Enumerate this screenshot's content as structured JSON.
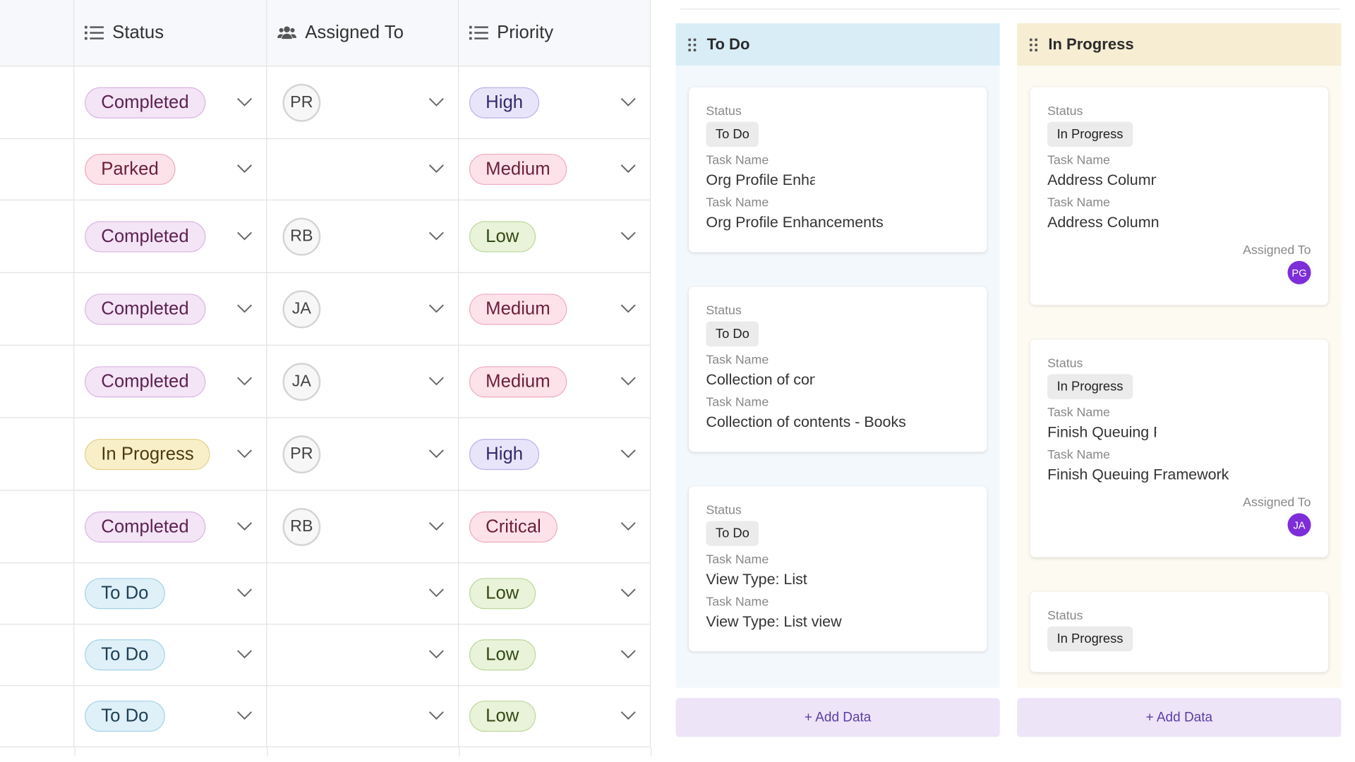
{
  "table": {
    "headers": [
      "Status",
      "Assigned To",
      "Priority"
    ],
    "rows": [
      {
        "status": "Completed",
        "assignee": "PR",
        "priority": "High"
      },
      {
        "status": "Parked",
        "assignee": null,
        "priority": "Medium"
      },
      {
        "status": "Completed",
        "assignee": "RB",
        "priority": "Low"
      },
      {
        "status": "Completed",
        "assignee": "JA",
        "priority": "Medium"
      },
      {
        "status": "Completed",
        "assignee": "JA",
        "priority": "Medium"
      },
      {
        "status": "In Progress",
        "assignee": "PR",
        "priority": "High"
      },
      {
        "status": "Completed",
        "assignee": "RB",
        "priority": "Critical"
      },
      {
        "status": "To Do",
        "assignee": null,
        "priority": "Low"
      },
      {
        "status": "To Do",
        "assignee": null,
        "priority": "Low"
      },
      {
        "status": "To Do",
        "assignee": null,
        "priority": "Low"
      }
    ],
    "pill_colors": {
      "Completed": [
        "#f3e4f6",
        "#d9b6e2",
        "#5c2350"
      ],
      "Parked": [
        "#fde2ea",
        "#f0a9c1",
        "#6b1f3a"
      ],
      "In Progress": [
        "#f8efc9",
        "#e3d28c",
        "#4a3d10"
      ],
      "To Do": [
        "#dff0f8",
        "#a5d2e7",
        "#1d3f55"
      ],
      "High": [
        "#e8e5fa",
        "#b9b3ea",
        "#332a6b"
      ],
      "Medium": [
        "#fde2ea",
        "#f0a9c1",
        "#6b1f3a"
      ],
      "Low": [
        "#e9f3d9",
        "#bdd79b",
        "#324a15"
      ],
      "Critical": [
        "#fde2ea",
        "#f0a9c1",
        "#6b1f3a"
      ]
    }
  },
  "kanban": {
    "add_label": "+ Add Data",
    "columns": [
      {
        "title": "To Do",
        "header_color": "#d9edf7",
        "body_color": "#f3f8fc",
        "cards": [
          {
            "fields": [
              {
                "label": "Status",
                "value": "To Do"
              },
              {
                "label": "Task Name",
                "value": "Org Profile Enhancements"
              },
              {
                "label": "Task Name",
                "value": "Org Profile Enhancements"
              }
            ]
          },
          {
            "fields": [
              {
                "label": "Status",
                "value": "To Do"
              },
              {
                "label": "Task Name",
                "value": "Collection of contents - Books"
              },
              {
                "label": "Task Name",
                "value": "Collection of contents - Books"
              }
            ]
          },
          {
            "fields": [
              {
                "label": "Status",
                "value": "To Do"
              },
              {
                "label": "Task Name",
                "value": "View Type: List"
              },
              {
                "label": "Task Name",
                "value": "View Type: List view"
              }
            ]
          }
        ]
      },
      {
        "title": "In Progress",
        "header_color": "#f6edd3",
        "body_color": "#fcfaf1",
        "cards": [
          {
            "fields": [
              {
                "label": "Status",
                "value": "In Progress"
              },
              {
                "label": "Task Name",
                "value": "Address Column"
              },
              {
                "label": "Task Name",
                "value": "Address Column"
              }
            ],
            "assigned": {
              "label": "Assigned To",
              "initials": "PG"
            }
          },
          {
            "fields": [
              {
                "label": "Status",
                "value": "In Progress"
              },
              {
                "label": "Task Name",
                "value": "Finish Queuing Framework"
              },
              {
                "label": "Task Name",
                "value": "Finish Queuing Framework"
              }
            ],
            "assigned": {
              "label": "Assigned To",
              "initials": "JA"
            }
          },
          {
            "fields": [
              {
                "label": "Status",
                "value": "In Progress"
              }
            ]
          }
        ]
      }
    ]
  }
}
